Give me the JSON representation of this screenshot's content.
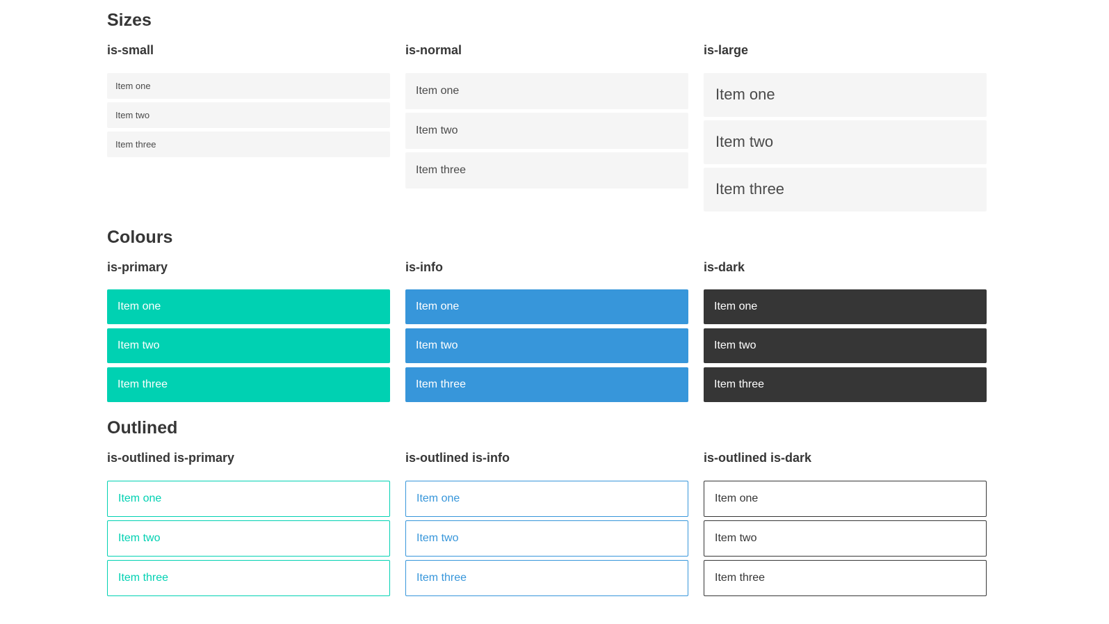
{
  "colors": {
    "page_bg": "#ffffff",
    "primary": "#00d1b2",
    "info": "#3796da",
    "dark": "#363636",
    "light_item_bg": "#f5f5f5",
    "item_text": "#4a4a4a",
    "heading_text": "#363636",
    "on_color_text": "#ffffff"
  },
  "sections": [
    {
      "heading": "Sizes",
      "groups": [
        {
          "title": "is-small",
          "items": [
            "Item one",
            "Item two",
            "Item three"
          ]
        },
        {
          "title": "is-normal",
          "items": [
            "Item one",
            "Item two",
            "Item three"
          ]
        },
        {
          "title": "is-large",
          "items": [
            "Item one",
            "Item two",
            "Item three"
          ]
        }
      ]
    },
    {
      "heading": "Colours",
      "groups": [
        {
          "title": "is-primary",
          "items": [
            "Item one",
            "Item two",
            "Item three"
          ]
        },
        {
          "title": "is-info",
          "items": [
            "Item one",
            "Item two",
            "Item three"
          ]
        },
        {
          "title": "is-dark",
          "items": [
            "Item one",
            "Item two",
            "Item three"
          ]
        }
      ]
    },
    {
      "heading": "Outlined",
      "groups": [
        {
          "title": "is-outlined is-primary",
          "items": [
            "Item one",
            "Item two",
            "Item three"
          ]
        },
        {
          "title": "is-outlined is-info",
          "items": [
            "Item one",
            "Item two",
            "Item three"
          ]
        },
        {
          "title": "is-outlined is-dark",
          "items": [
            "Item one",
            "Item two",
            "Item three"
          ]
        }
      ]
    }
  ]
}
